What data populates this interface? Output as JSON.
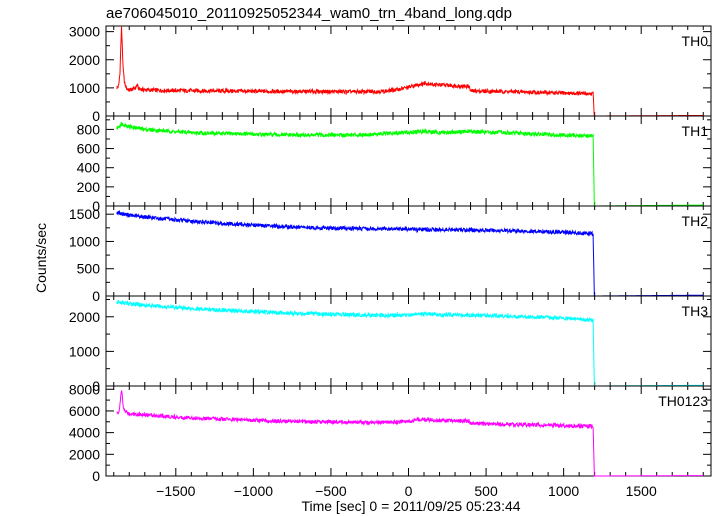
{
  "title": "ae706045010_20110925052344_wam0_trn_4band_long.qdp",
  "xlabel": "Time [sec] 0 = 2011/09/25 05:23:44",
  "ylabel": "Counts/sec",
  "chart_data": [
    {
      "type": "line",
      "name": "TH0",
      "color": "#ff0000",
      "xlim": [
        -1950,
        1950
      ],
      "ylim": [
        0,
        3200
      ],
      "yticks": [
        0,
        1000,
        2000,
        3000
      ],
      "points": [
        [
          -1880,
          1000
        ],
        [
          -1868,
          1080
        ],
        [
          -1860,
          1550
        ],
        [
          -1855,
          2400
        ],
        [
          -1850,
          3150
        ],
        [
          -1845,
          2500
        ],
        [
          -1840,
          1700
        ],
        [
          -1830,
          1150
        ],
        [
          -1815,
          960
        ],
        [
          -1800,
          920
        ],
        [
          -1780,
          950
        ],
        [
          -1760,
          1000
        ],
        [
          -1750,
          1110
        ],
        [
          -1740,
          970
        ],
        [
          -1700,
          930
        ],
        [
          -1600,
          910
        ],
        [
          -1400,
          900
        ],
        [
          -1200,
          890
        ],
        [
          -1000,
          880
        ],
        [
          -800,
          870
        ],
        [
          -600,
          870
        ],
        [
          -300,
          860
        ],
        [
          -150,
          880
        ],
        [
          -80,
          930
        ],
        [
          0,
          1020
        ],
        [
          60,
          1110
        ],
        [
          110,
          1170
        ],
        [
          160,
          1120
        ],
        [
          220,
          1100
        ],
        [
          300,
          1080
        ],
        [
          350,
          1060
        ],
        [
          390,
          1060
        ],
        [
          400,
          890
        ],
        [
          500,
          880
        ],
        [
          700,
          860
        ],
        [
          900,
          830
        ],
        [
          1100,
          800
        ],
        [
          1190,
          790
        ],
        [
          1198,
          0
        ],
        [
          1900,
          20
        ]
      ]
    },
    {
      "type": "line",
      "name": "TH1",
      "color": "#00ff00",
      "xlim": [
        -1950,
        1950
      ],
      "ylim": [
        0,
        940
      ],
      "yticks": [
        0,
        200,
        400,
        600,
        800
      ],
      "points": [
        [
          -1880,
          810
        ],
        [
          -1850,
          860
        ],
        [
          -1800,
          830
        ],
        [
          -1700,
          800
        ],
        [
          -1500,
          775
        ],
        [
          -1300,
          760
        ],
        [
          -1100,
          755
        ],
        [
          -900,
          745
        ],
        [
          -700,
          740
        ],
        [
          -500,
          742
        ],
        [
          -300,
          745
        ],
        [
          -100,
          758
        ],
        [
          0,
          770
        ],
        [
          100,
          778
        ],
        [
          200,
          768
        ],
        [
          300,
          772
        ],
        [
          400,
          778
        ],
        [
          500,
          772
        ],
        [
          700,
          760
        ],
        [
          900,
          745
        ],
        [
          1100,
          735
        ],
        [
          1190,
          730
        ],
        [
          1198,
          0
        ],
        [
          1900,
          10
        ]
      ]
    },
    {
      "type": "line",
      "name": "TH2",
      "color": "#0000ff",
      "xlim": [
        -1950,
        1950
      ],
      "ylim": [
        0,
        1650
      ],
      "yticks": [
        0,
        500,
        1000,
        1500
      ],
      "points": [
        [
          -1880,
          1530
        ],
        [
          -1800,
          1480
        ],
        [
          -1600,
          1420
        ],
        [
          -1400,
          1370
        ],
        [
          -1200,
          1330
        ],
        [
          -1000,
          1300
        ],
        [
          -800,
          1270
        ],
        [
          -600,
          1250
        ],
        [
          -400,
          1240
        ],
        [
          -200,
          1230
        ],
        [
          0,
          1225
        ],
        [
          200,
          1215
        ],
        [
          400,
          1210
        ],
        [
          600,
          1200
        ],
        [
          800,
          1185
        ],
        [
          1000,
          1170
        ],
        [
          1190,
          1140
        ],
        [
          1198,
          0
        ],
        [
          1900,
          15
        ]
      ]
    },
    {
      "type": "line",
      "name": "TH3",
      "color": "#00ffff",
      "xlim": [
        -1950,
        1950
      ],
      "ylim": [
        0,
        2600
      ],
      "yticks": [
        0,
        1000,
        2000
      ],
      "points": [
        [
          -1880,
          2420
        ],
        [
          -1800,
          2380
        ],
        [
          -1600,
          2300
        ],
        [
          -1400,
          2240
        ],
        [
          -1200,
          2190
        ],
        [
          -1000,
          2150
        ],
        [
          -800,
          2110
        ],
        [
          -600,
          2080
        ],
        [
          -400,
          2060
        ],
        [
          -200,
          2040
        ],
        [
          0,
          2050
        ],
        [
          100,
          2090
        ],
        [
          200,
          2060
        ],
        [
          400,
          2050
        ],
        [
          600,
          2030
        ],
        [
          800,
          2000
        ],
        [
          1000,
          1960
        ],
        [
          1190,
          1900
        ],
        [
          1198,
          0
        ],
        [
          1900,
          20
        ]
      ]
    },
    {
      "type": "line",
      "name": "TH0123",
      "color": "#ff00ff",
      "xlim": [
        -1950,
        1950
      ],
      "ylim": [
        0,
        8300
      ],
      "yticks": [
        0,
        2000,
        4000,
        6000,
        8000
      ],
      "points": [
        [
          -1880,
          5800
        ],
        [
          -1868,
          5900
        ],
        [
          -1860,
          6500
        ],
        [
          -1855,
          7400
        ],
        [
          -1850,
          7900
        ],
        [
          -1845,
          7300
        ],
        [
          -1840,
          6500
        ],
        [
          -1830,
          6000
        ],
        [
          -1800,
          5750
        ],
        [
          -1700,
          5650
        ],
        [
          -1500,
          5450
        ],
        [
          -1300,
          5300
        ],
        [
          -1100,
          5200
        ],
        [
          -900,
          5100
        ],
        [
          -700,
          5030
        ],
        [
          -500,
          4980
        ],
        [
          -300,
          4950
        ],
        [
          -100,
          4960
        ],
        [
          0,
          5050
        ],
        [
          80,
          5220
        ],
        [
          130,
          5200
        ],
        [
          200,
          5120
        ],
        [
          300,
          5100
        ],
        [
          390,
          5090
        ],
        [
          400,
          4850
        ],
        [
          500,
          4800
        ],
        [
          700,
          4750
        ],
        [
          900,
          4680
        ],
        [
          1100,
          4600
        ],
        [
          1190,
          4570
        ],
        [
          1198,
          0
        ],
        [
          1900,
          40
        ]
      ]
    }
  ],
  "xticks": [
    -1500,
    -1000,
    -500,
    0,
    500,
    1000,
    1500
  ],
  "xticks_minor": [
    -1900,
    -1800,
    -1700,
    -1600,
    -1400,
    -1300,
    -1200,
    -1100,
    -900,
    -800,
    -700,
    -600,
    -400,
    -300,
    -200,
    -100,
    100,
    200,
    300,
    400,
    600,
    700,
    800,
    900,
    1100,
    1200,
    1300,
    1400,
    1600,
    1700,
    1800,
    1900
  ]
}
